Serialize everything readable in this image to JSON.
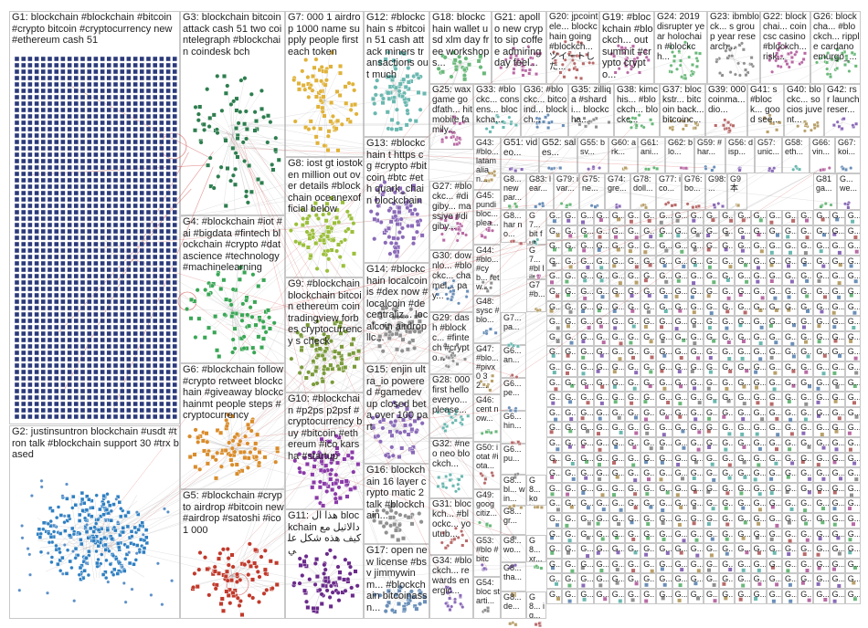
{
  "colors": {
    "box_border": "#c8c8c8",
    "edge": "#b0b0b0",
    "edge_red": "#d04040",
    "g1": "#2b3a7a",
    "g2": "#2f7fc1",
    "g3": "#2e7d4f",
    "g4": "#3aa655",
    "g5": "#c0392b",
    "g6": "#d98c2b",
    "g7": "#e0b23a",
    "g8": "#9bbf3a",
    "g9": "#7a9a3a",
    "g10": "#8a3aa8",
    "g11": "#6a2a8a"
  },
  "groups": [
    {
      "id": "G1",
      "label": "G1: blockchain #blockchain #bitcoin #crypto bitcoin #cryptocurrency new #ethereum cash 51"
    },
    {
      "id": "G2",
      "label": "G2: justinsuntron blockchain #usdt #tron talk #blockchain support 30 #trx based"
    },
    {
      "id": "G3",
      "label": "G3: blockchain bitcoin attack cash 51 two cointelegraph #blockchain coindesk bch"
    },
    {
      "id": "G4",
      "label": "G4: #blockchain #iot #ai #bigdata #fintech blockchain #crypto #datascience #technology #machinelearning"
    },
    {
      "id": "G5",
      "label": "G5: #blockchain #crypto airdrop #bitcoin new #airdrop #satoshi #ico 1 000"
    },
    {
      "id": "G6",
      "label": "G6: #blockchain follow #crypto retweet blockchain #giveaway blockchainmt people steps #cryptocurrency"
    },
    {
      "id": "G7",
      "label": "G7: 000 1 airdrop 1000 name supply people first each token"
    },
    {
      "id": "G8",
      "label": "G8: iost gt iostoken million out over details #blockchain oceanexofficial below"
    },
    {
      "id": "G9",
      "label": "G9: #blockchain blockchain bitcoin ethereum coin tradingview forbes cryptocurrency s check"
    },
    {
      "id": "G10",
      "label": "G10: #blockchain #p2ps p2psf #cryptocurrency buy #bitcoin #ethereum #ico karsha #startup"
    },
    {
      "id": "G11",
      "label": "G11: هذا ال blockchain دالاثيل مع كيف هذه شكل علي"
    },
    {
      "id": "G12",
      "label": "G12: #blockchain s #bitcoin 51 cash attack miners transactions out much"
    },
    {
      "id": "G13",
      "label": "G13: #blockchain t https cg #crypto #bitcoin #btc #eth quark_chain blockchain"
    },
    {
      "id": "G14",
      "label": "G14: #blockchain localcoinis #dex now #localcoin #decentraliz... localcoin airdrop llc..."
    },
    {
      "id": "G15",
      "label": "G15: enjin ultra_io powered #gamedev up closed beta over 100 part"
    },
    {
      "id": "G16",
      "label": "G16: blockchain 16 layer crypto matic 2 talk #blockchain..."
    },
    {
      "id": "G17",
      "label": "G17: open new license #bsv jimmywinm... #blockchain bitcoinassn..."
    },
    {
      "id": "G18",
      "label": "G18: blockchain wallet usd xlm day free workshop s..."
    },
    {
      "id": "G19",
      "label": "G19: #blockchain #blockch... out summit #crypto crypto..."
    },
    {
      "id": "G20",
      "label": "G20: jpcointele... blockchain going #blockch... ツイートした..."
    },
    {
      "id": "G21",
      "label": "G21: apollo new crypto sip coffee admiring day feel..."
    },
    {
      "id": "G22",
      "label": "G22: blockchai... coin csc casino #blockch... risk..."
    },
    {
      "id": "G23",
      "label": "G23: ibmblock... s group year research..."
    },
    {
      "id": "G24",
      "label": "G24: 2019 disrupter year holochain #blockch..."
    },
    {
      "id": "G25",
      "label": "G25: wax game godfath... hit mobile family..."
    },
    {
      "id": "G26",
      "label": "G26: blockcha... #blockch... ripple cardano emurgo_..."
    },
    {
      "id": "G27",
      "label": "G27: #blockc... #digiby... massive #digiby..."
    },
    {
      "id": "G28",
      "label": "G28: 000 first hello everyo... please..."
    },
    {
      "id": "G29",
      "label": "G29: dash #blockc... #fintech #crypto..."
    },
    {
      "id": "G30",
      "label": "G30: downlo... #blockc... chamel... pay..."
    },
    {
      "id": "G31",
      "label": "G31: blockch... #blockc... youtub..."
    },
    {
      "id": "G32",
      "label": "G32: #neo neo blockch..."
    },
    {
      "id": "G33",
      "label": "G33: #blockc... consens... blockcha..."
    },
    {
      "id": "G34",
      "label": "G34: #blockch... rewards energic..."
    },
    {
      "id": "G35",
      "label": "G35: zilliqa #shardi... blockcha..."
    },
    {
      "id": "G36",
      "label": "G36: #blockc... bitcoind... blockch..."
    },
    {
      "id": "G37",
      "label": "G37: blockstr... bitcoin back... bitcoinc..."
    },
    {
      "id": "G38",
      "label": "G38: kimchis... #blockch... blockc..."
    },
    {
      "id": "G39",
      "label": "G39: 000 coinma... dio..."
    },
    {
      "id": "G40",
      "label": "G40: blockc... socios juvent..."
    },
    {
      "id": "G41",
      "label": "G41: s #block... good see..."
    },
    {
      "id": "G42",
      "label": "G42: rsr launch reser..."
    },
    {
      "id": "G43",
      "label": "G43: #blo... latam alian..."
    },
    {
      "id": "G44",
      "label": "G44: #blo... #cyb... retw..."
    },
    {
      "id": "G45",
      "label": "G45: pundi bloc... plea..."
    },
    {
      "id": "G46",
      "label": "G46: cent now..."
    },
    {
      "id": "G47",
      "label": "G47: #blo... #pivx 0 3 2..."
    },
    {
      "id": "G48",
      "label": "G48: sysc #blo..."
    },
    {
      "id": "G49",
      "label": "G49: goog citiz..."
    },
    {
      "id": "G50",
      "label": "G50: iotat #iota..."
    },
    {
      "id": "G51",
      "label": "G51: video..."
    },
    {
      "id": "G52",
      "label": "G52: sales..."
    },
    {
      "id": "G53",
      "label": "G53: #blo #bitc"
    },
    {
      "id": "G54",
      "label": "G54: bloc starti..."
    },
    {
      "id": "G55",
      "label": "G55: bsv..."
    },
    {
      "id": "G56",
      "label": "G56: disp..."
    },
    {
      "id": "G57",
      "label": "G57: unic..."
    },
    {
      "id": "G58",
      "label": "G58: eth..."
    },
    {
      "id": "G59",
      "label": "G59: #har..."
    },
    {
      "id": "G60",
      "label": "G60: ark..."
    },
    {
      "id": "G61",
      "label": "G61: ani..."
    },
    {
      "id": "G62",
      "label": "G62: blo..."
    },
    {
      "id": "G66",
      "label": "G66: vin..."
    },
    {
      "id": "G67",
      "label": "G67: koi..."
    },
    {
      "id": "G70",
      "label": "G7... bit fut..."
    },
    {
      "id": "G71",
      "label": "G7... #bl lilt"
    },
    {
      "id": "G72",
      "label": "G7 #b..."
    },
    {
      "id": "G73",
      "label": "G7... pa..."
    },
    {
      "id": "G74",
      "label": "G74: gre..."
    },
    {
      "id": "G75",
      "label": "G75: ne..."
    },
    {
      "id": "G76",
      "label": "G76: bo..."
    },
    {
      "id": "G77",
      "label": "G77: ico..."
    },
    {
      "id": "G78",
      "label": "G78: doll..."
    },
    {
      "id": "G79",
      "label": "G79: ivar..."
    },
    {
      "id": "G81",
      "label": "G81 ga..."
    },
    {
      "id": "G82",
      "label": "G8... new par..."
    },
    {
      "id": "G83",
      "label": "G83: lear..."
    },
    {
      "id": "G84",
      "label": "G8... har no..."
    },
    {
      "id": "G85",
      "label": "G6... an..."
    },
    {
      "id": "G86",
      "label": "G6... pe..."
    },
    {
      "id": "G87",
      "label": "G6... hin..."
    },
    {
      "id": "G88",
      "label": "G6... pu..."
    },
    {
      "id": "G89",
      "label": "G8... bl... win..."
    },
    {
      "id": "G90",
      "label": "G8... kob..."
    },
    {
      "id": "G91",
      "label": "G8... gr..."
    },
    {
      "id": "G92",
      "label": "G8... wo..."
    },
    {
      "id": "G93",
      "label": "G8... tha..."
    },
    {
      "id": "G94",
      "label": "G8... de..."
    },
    {
      "id": "G95",
      "label": "G8... xr..."
    },
    {
      "id": "G96",
      "label": "G8... ig..."
    },
    {
      "id": "G97",
      "label": "G9 本"
    },
    {
      "id": "G98",
      "label": "G98: ..."
    },
    {
      "id": "G99",
      "label": "G... we..."
    }
  ],
  "small_cell_label": "G..."
}
